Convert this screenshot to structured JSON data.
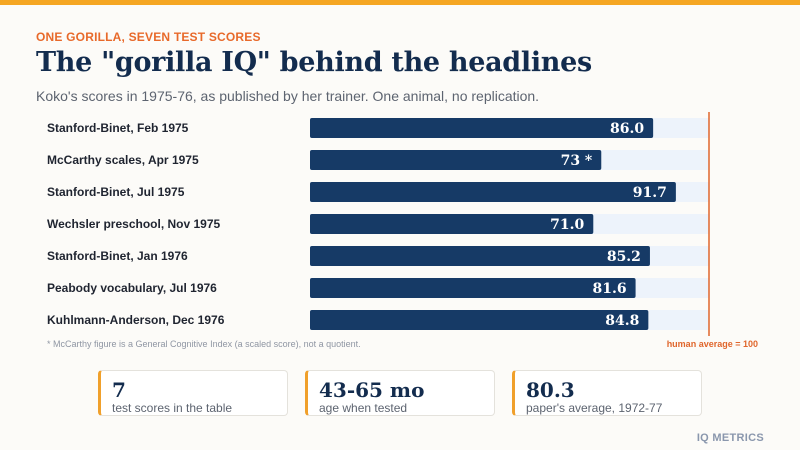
{
  "header": {
    "eyebrow": "ONE GORILLA, SEVEN TEST SCORES",
    "title": "The \"gorilla IQ\" behind the headlines",
    "subtitle": "Koko's scores in 1975-76, as published by her trainer. One animal, no replication."
  },
  "chart_data": {
    "type": "bar",
    "orientation": "horizontal",
    "categories": [
      "Stanford-Binet, Feb 1975",
      "McCarthy scales, Apr 1975",
      "Stanford-Binet, Jul 1975",
      "Wechsler preschool, Nov 1975",
      "Stanford-Binet, Jan 1976",
      "Peabody vocabulary, Jul 1976",
      "Kuhlmann-Anderson, Dec 1976"
    ],
    "values": [
      86.0,
      73,
      91.7,
      71.0,
      85.2,
      81.6,
      84.8
    ],
    "value_labels": [
      "86.0",
      "73 *",
      "91.7",
      "71.0",
      "85.2",
      "81.6",
      "84.8"
    ],
    "xlim": [
      0,
      100
    ],
    "reference_line": {
      "value": 100,
      "label": "human average = 100"
    },
    "footnote": "* McCarthy figure is a General Cognitive Index (a scaled score), not a quotient.",
    "colors": {
      "bar": "#163a66",
      "track": "#edf3fb",
      "reference": "#e0662c"
    }
  },
  "stats": [
    {
      "value": "7",
      "label": "test scores in the table"
    },
    {
      "value": "43-65 mo",
      "label": "age when tested"
    },
    {
      "value": "80.3",
      "label": "paper's average, 1972-77"
    }
  ],
  "brand": "IQ METRICS",
  "colors": {
    "accent": "#f5a623",
    "eyebrow": "#e8692a",
    "title": "#132c4e"
  }
}
